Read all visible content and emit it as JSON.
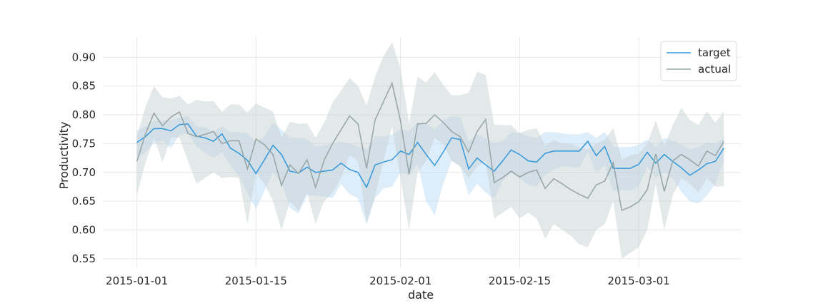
{
  "chart_data": {
    "type": "line",
    "title": "",
    "xlabel": "date",
    "ylabel": "Productivity",
    "x_ticks": [
      "2015-01-01",
      "2015-01-15",
      "2015-02-01",
      "2015-02-15",
      "2015-03-01"
    ],
    "y_ticks": [
      "0.55",
      "0.60",
      "0.65",
      "0.70",
      "0.75",
      "0.80",
      "0.85",
      "0.90"
    ],
    "xlim": [
      "2014-12-28",
      "2015-03-13"
    ],
    "ylim": [
      0.535,
      0.935
    ],
    "grid": true,
    "legend_position": "top-right",
    "x": [
      "2015-01-01",
      "2015-01-02",
      "2015-01-03",
      "2015-01-04",
      "2015-01-05",
      "2015-01-06",
      "2015-01-07",
      "2015-01-08",
      "2015-01-09",
      "2015-01-10",
      "2015-01-11",
      "2015-01-12",
      "2015-01-13",
      "2015-01-14",
      "2015-01-15",
      "2015-01-16",
      "2015-01-17",
      "2015-01-18",
      "2015-01-19",
      "2015-01-20",
      "2015-01-21",
      "2015-01-22",
      "2015-01-23",
      "2015-01-24",
      "2015-01-25",
      "2015-01-26",
      "2015-01-27",
      "2015-01-28",
      "2015-01-29",
      "2015-01-30",
      "2015-01-31",
      "2015-02-01",
      "2015-02-02",
      "2015-02-03",
      "2015-02-04",
      "2015-02-05",
      "2015-02-06",
      "2015-02-07",
      "2015-02-08",
      "2015-02-09",
      "2015-02-10",
      "2015-02-11",
      "2015-02-12",
      "2015-02-13",
      "2015-02-14",
      "2015-02-15",
      "2015-02-16",
      "2015-02-17",
      "2015-02-18",
      "2015-02-19",
      "2015-02-20",
      "2015-02-21",
      "2015-02-22",
      "2015-02-23",
      "2015-02-24",
      "2015-02-25",
      "2015-02-26",
      "2015-02-27",
      "2015-02-28",
      "2015-03-01",
      "2015-03-02",
      "2015-03-03",
      "2015-03-04",
      "2015-03-05",
      "2015-03-06",
      "2015-03-07",
      "2015-03-08",
      "2015-03-09",
      "2015-03-10",
      "2015-03-11"
    ],
    "series": [
      {
        "name": "target",
        "color": "#3498db",
        "band_color": "#bcdcf3",
        "values": [
          0.752,
          0.762,
          0.776,
          0.776,
          0.772,
          0.783,
          0.784,
          0.763,
          0.76,
          0.754,
          0.767,
          0.742,
          0.733,
          0.721,
          0.698,
          0.722,
          0.747,
          0.731,
          0.702,
          0.699,
          0.709,
          0.7,
          0.702,
          0.704,
          0.716,
          0.705,
          0.7,
          0.674,
          0.713,
          0.718,
          0.722,
          0.737,
          0.731,
          0.752,
          0.731,
          0.712,
          0.735,
          0.76,
          0.757,
          0.706,
          0.725,
          0.713,
          0.702,
          0.72,
          0.739,
          0.731,
          0.72,
          0.718,
          0.733,
          0.737,
          0.737,
          0.737,
          0.737,
          0.754,
          0.729,
          0.745,
          0.707,
          0.707,
          0.707,
          0.714,
          0.735,
          0.716,
          0.731,
          0.719,
          0.708,
          0.695,
          0.704,
          0.715,
          0.719,
          0.742
        ],
        "lower": [
          0.725,
          0.735,
          0.75,
          0.755,
          0.742,
          0.765,
          0.768,
          0.745,
          0.735,
          0.725,
          0.735,
          0.712,
          0.694,
          0.664,
          0.636,
          0.668,
          0.7,
          0.683,
          0.638,
          0.629,
          0.66,
          0.66,
          0.658,
          0.655,
          0.68,
          0.662,
          0.655,
          0.61,
          0.655,
          0.672,
          0.675,
          0.7,
          0.695,
          0.715,
          0.65,
          0.625,
          0.68,
          0.72,
          0.712,
          0.66,
          0.68,
          0.665,
          0.655,
          0.685,
          0.7,
          0.69,
          0.678,
          0.675,
          0.695,
          0.705,
          0.71,
          0.71,
          0.708,
          0.735,
          0.7,
          0.712,
          0.668,
          0.67,
          0.668,
          0.675,
          0.71,
          0.69,
          0.7,
          0.69,
          0.666,
          0.65,
          0.646,
          0.66,
          0.68,
          0.72
        ],
        "upper": [
          0.772,
          0.78,
          0.79,
          0.79,
          0.79,
          0.795,
          0.798,
          0.78,
          0.778,
          0.77,
          0.78,
          0.77,
          0.77,
          0.768,
          0.752,
          0.763,
          0.786,
          0.774,
          0.76,
          0.76,
          0.758,
          0.745,
          0.747,
          0.75,
          0.753,
          0.75,
          0.745,
          0.74,
          0.763,
          0.762,
          0.766,
          0.774,
          0.772,
          0.786,
          0.785,
          0.775,
          0.79,
          0.798,
          0.796,
          0.755,
          0.765,
          0.76,
          0.75,
          0.755,
          0.77,
          0.768,
          0.763,
          0.76,
          0.77,
          0.77,
          0.768,
          0.766,
          0.766,
          0.77,
          0.76,
          0.77,
          0.745,
          0.744,
          0.744,
          0.748,
          0.757,
          0.743,
          0.76,
          0.755,
          0.748,
          0.74,
          0.744,
          0.752,
          0.75,
          0.76
        ]
      },
      {
        "name": "actual",
        "color": "#95a5a6",
        "band_color": "#c7d2d3",
        "values": [
          0.719,
          0.766,
          0.803,
          0.781,
          0.796,
          0.805,
          0.768,
          0.762,
          0.766,
          0.771,
          0.75,
          0.755,
          0.755,
          0.706,
          0.758,
          0.748,
          0.731,
          0.677,
          0.713,
          0.698,
          0.722,
          0.674,
          0.721,
          0.75,
          0.774,
          0.798,
          0.784,
          0.707,
          0.791,
          0.823,
          0.855,
          0.789,
          0.697,
          0.784,
          0.785,
          0.8,
          0.787,
          0.771,
          0.762,
          0.735,
          0.771,
          0.792,
          0.682,
          0.691,
          0.702,
          0.692,
          0.7,
          0.704,
          0.672,
          0.689,
          0.68,
          0.67,
          0.662,
          0.655,
          0.678,
          0.685,
          0.717,
          0.634,
          0.64,
          0.649,
          0.67,
          0.732,
          0.667,
          0.72,
          0.731,
          0.722,
          0.711,
          0.737,
          0.729,
          0.754
        ],
        "lower": [
          0.66,
          0.716,
          0.76,
          0.718,
          0.76,
          0.76,
          0.72,
          0.68,
          0.69,
          0.7,
          0.69,
          0.692,
          0.69,
          0.61,
          0.7,
          0.68,
          0.65,
          0.6,
          0.65,
          0.633,
          0.665,
          0.61,
          0.65,
          0.665,
          0.69,
          0.73,
          0.72,
          0.61,
          0.66,
          0.72,
          0.78,
          0.69,
          0.6,
          0.7,
          0.72,
          0.76,
          0.75,
          0.72,
          0.71,
          0.69,
          0.71,
          0.72,
          0.62,
          0.63,
          0.64,
          0.62,
          0.63,
          0.62,
          0.585,
          0.61,
          0.6,
          0.59,
          0.575,
          0.57,
          0.6,
          0.61,
          0.65,
          0.55,
          0.56,
          0.57,
          0.6,
          0.68,
          0.6,
          0.66,
          0.69,
          0.68,
          0.665,
          0.69,
          0.675,
          0.676
        ],
        "upper": [
          0.763,
          0.813,
          0.85,
          0.831,
          0.828,
          0.833,
          0.818,
          0.826,
          0.823,
          0.824,
          0.805,
          0.818,
          0.818,
          0.804,
          0.82,
          0.812,
          0.806,
          0.76,
          0.788,
          0.784,
          0.785,
          0.76,
          0.786,
          0.821,
          0.842,
          0.864,
          0.85,
          0.816,
          0.866,
          0.902,
          0.926,
          0.88,
          0.785,
          0.866,
          0.856,
          0.874,
          0.852,
          0.834,
          0.834,
          0.838,
          0.875,
          0.869,
          0.783,
          0.782,
          0.782,
          0.768,
          0.774,
          0.776,
          0.747,
          0.756,
          0.75,
          0.75,
          0.743,
          0.74,
          0.75,
          0.757,
          0.777,
          0.722,
          0.73,
          0.732,
          0.75,
          0.79,
          0.746,
          0.782,
          0.812,
          0.791,
          0.782,
          0.806,
          0.786,
          0.806
        ]
      }
    ]
  }
}
